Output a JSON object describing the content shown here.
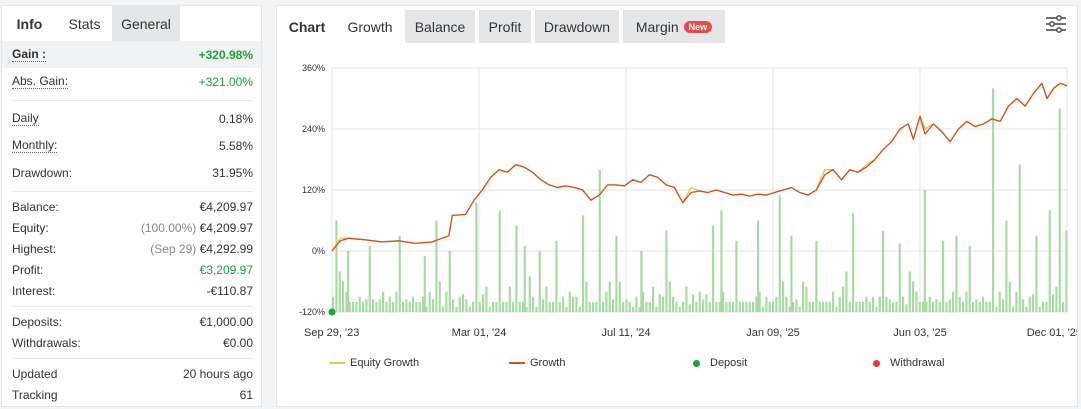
{
  "left_tabs": {
    "info": "Info",
    "stats": "Stats",
    "general": "General"
  },
  "stats": {
    "gain": {
      "label": "Gain :",
      "value": "+320.98%"
    },
    "abs_gain": {
      "label": "Abs. Gain:",
      "value": "+321.00%"
    },
    "daily": {
      "label": "Daily",
      "value": "0.18%"
    },
    "monthly": {
      "label": "Monthly:",
      "value": "5.58%"
    },
    "drawdown": {
      "label": "Drawdown:",
      "value": "31.95%"
    },
    "balance": {
      "label": "Balance:",
      "value": "€4,209.97"
    },
    "equity": {
      "label": "Equity:",
      "note": "(100.00%)",
      "value": "€4,209.97"
    },
    "highest": {
      "label": "Highest:",
      "note": "(Sep 29)",
      "value": "€4,292.99"
    },
    "profit": {
      "label": "Profit:",
      "value": "€3,209.97"
    },
    "interest": {
      "label": "Interest:",
      "value": "-€110.87"
    },
    "deposits": {
      "label": "Deposits:",
      "value": "€1,000.00"
    },
    "withdrawals": {
      "label": "Withdrawals:",
      "value": "€0.00"
    },
    "updated": {
      "label": "Updated",
      "value": "20 hours ago"
    },
    "tracking": {
      "label": "Tracking",
      "value": "61"
    }
  },
  "chart_tabs": {
    "chart": "Chart",
    "growth": "Growth",
    "balance": "Balance",
    "profit": "Profit",
    "drawdown": "Drawdown",
    "margin": "Margin",
    "margin_badge": "New"
  },
  "legend": {
    "equity_growth": "Equity Growth",
    "growth": "Growth",
    "deposit": "Deposit",
    "withdrawal": "Withdrawal"
  },
  "colors": {
    "growth_line": "#d2511f",
    "equity_line": "#f2c14e",
    "bars": "#a8dba4",
    "deposit": "#1aa33b",
    "withdrawal": "#e53935",
    "gain_green": "#1aa33b",
    "badge_red": "#e94a4a"
  },
  "icons": {
    "settings": "sliders-icon"
  },
  "chart_data": {
    "type": "line",
    "xlabel": "",
    "ylabel": "",
    "x_ticks": [
      "Sep 29, '23",
      "Mar 01, '24",
      "Jul 11, '24",
      "Jan 09, '25",
      "Jun 03, '25",
      "Dec 01, '25"
    ],
    "y_ticks": [
      "360%",
      "240%",
      "120%",
      "0%",
      "-120%"
    ],
    "ylim": [
      -120,
      360
    ],
    "grid": true,
    "legend_position": "bottom",
    "series": [
      {
        "name": "Growth",
        "points": [
          [
            0,
            0
          ],
          [
            5,
            20
          ],
          [
            10,
            25
          ],
          [
            20,
            22
          ],
          [
            30,
            18
          ],
          [
            40,
            20
          ],
          [
            50,
            15
          ],
          [
            60,
            18
          ],
          [
            70,
            30
          ],
          [
            72,
            70
          ],
          [
            80,
            72
          ],
          [
            85,
            100
          ],
          [
            90,
            120
          ],
          [
            95,
            145
          ],
          [
            100,
            160
          ],
          [
            105,
            155
          ],
          [
            110,
            170
          ],
          [
            115,
            165
          ],
          [
            120,
            155
          ],
          [
            125,
            140
          ],
          [
            130,
            130
          ],
          [
            135,
            125
          ],
          [
            140,
            128
          ],
          [
            145,
            125
          ],
          [
            150,
            120
          ],
          [
            155,
            100
          ],
          [
            160,
            110
          ],
          [
            165,
            130
          ],
          [
            170,
            130
          ],
          [
            175,
            128
          ],
          [
            180,
            140
          ],
          [
            185,
            135
          ],
          [
            190,
            150
          ],
          [
            195,
            145
          ],
          [
            200,
            130
          ],
          [
            205,
            125
          ],
          [
            210,
            95
          ],
          [
            215,
            115
          ],
          [
            220,
            118
          ],
          [
            225,
            115
          ],
          [
            230,
            120
          ],
          [
            235,
            115
          ],
          [
            240,
            110
          ],
          [
            245,
            112
          ],
          [
            250,
            108
          ],
          [
            255,
            112
          ],
          [
            260,
            110
          ],
          [
            265,
            115
          ],
          [
            270,
            120
          ],
          [
            275,
            125
          ],
          [
            280,
            115
          ],
          [
            285,
            110
          ],
          [
            290,
            120
          ],
          [
            295,
            150
          ],
          [
            300,
            160
          ],
          [
            305,
            140
          ],
          [
            310,
            160
          ],
          [
            315,
            155
          ],
          [
            320,
            165
          ],
          [
            325,
            180
          ],
          [
            330,
            200
          ],
          [
            335,
            215
          ],
          [
            340,
            240
          ],
          [
            345,
            250
          ],
          [
            348,
            220
          ],
          [
            352,
            265
          ],
          [
            355,
            230
          ],
          [
            360,
            250
          ],
          [
            365,
            235
          ],
          [
            370,
            215
          ],
          [
            375,
            240
          ],
          [
            380,
            255
          ],
          [
            385,
            245
          ],
          [
            390,
            250
          ],
          [
            395,
            260
          ],
          [
            400,
            255
          ],
          [
            405,
            285
          ],
          [
            410,
            300
          ],
          [
            415,
            285
          ],
          [
            420,
            310
          ],
          [
            425,
            330
          ],
          [
            428,
            300
          ],
          [
            432,
            320
          ],
          [
            436,
            330
          ],
          [
            440,
            325
          ]
        ]
      },
      {
        "name": "Equity Growth",
        "points": [
          [
            0,
            0
          ],
          [
            5,
            25
          ],
          [
            10,
            25
          ],
          [
            20,
            22
          ],
          [
            30,
            18
          ],
          [
            40,
            20
          ],
          [
            50,
            15
          ],
          [
            60,
            18
          ],
          [
            70,
            30
          ],
          [
            72,
            70
          ],
          [
            80,
            72
          ],
          [
            85,
            100
          ],
          [
            90,
            120
          ],
          [
            95,
            145
          ],
          [
            100,
            160
          ],
          [
            105,
            155
          ],
          [
            110,
            170
          ],
          [
            115,
            165
          ],
          [
            120,
            155
          ],
          [
            125,
            140
          ],
          [
            130,
            130
          ],
          [
            135,
            125
          ],
          [
            140,
            128
          ],
          [
            145,
            125
          ],
          [
            150,
            120
          ],
          [
            155,
            100
          ],
          [
            160,
            110
          ],
          [
            165,
            130
          ],
          [
            170,
            130
          ],
          [
            175,
            128
          ],
          [
            180,
            140
          ],
          [
            185,
            135
          ],
          [
            190,
            150
          ],
          [
            195,
            145
          ],
          [
            200,
            130
          ],
          [
            205,
            125
          ],
          [
            210,
            95
          ],
          [
            215,
            125
          ],
          [
            220,
            118
          ],
          [
            225,
            115
          ],
          [
            230,
            120
          ],
          [
            235,
            115
          ],
          [
            240,
            110
          ],
          [
            245,
            112
          ],
          [
            250,
            108
          ],
          [
            255,
            112
          ],
          [
            260,
            110
          ],
          [
            265,
            115
          ],
          [
            270,
            120
          ],
          [
            275,
            125
          ],
          [
            280,
            115
          ],
          [
            285,
            110
          ],
          [
            290,
            120
          ],
          [
            295,
            160
          ],
          [
            300,
            160
          ],
          [
            305,
            140
          ],
          [
            310,
            160
          ],
          [
            315,
            155
          ],
          [
            320,
            170
          ],
          [
            325,
            180
          ],
          [
            330,
            200
          ],
          [
            335,
            215
          ],
          [
            340,
            240
          ],
          [
            345,
            250
          ],
          [
            348,
            220
          ],
          [
            352,
            265
          ],
          [
            355,
            240
          ],
          [
            360,
            250
          ],
          [
            365,
            235
          ],
          [
            370,
            215
          ],
          [
            375,
            240
          ],
          [
            380,
            255
          ],
          [
            385,
            245
          ],
          [
            390,
            250
          ],
          [
            395,
            260
          ],
          [
            400,
            255
          ],
          [
            405,
            285
          ],
          [
            410,
            300
          ],
          [
            415,
            285
          ],
          [
            420,
            310
          ],
          [
            425,
            330
          ],
          [
            428,
            300
          ],
          [
            432,
            320
          ],
          [
            436,
            330
          ],
          [
            440,
            325
          ]
        ]
      }
    ],
    "bars_series": {
      "name": "daily gain bars",
      "values": [
        -90,
        -60,
        -105,
        -100,
        -40,
        -95,
        -60,
        -100,
        -80,
        -110,
        -100,
        -90,
        -100,
        -110,
        -100,
        -80,
        -90,
        -100,
        -100,
        -100,
        -95,
        -70,
        -100,
        -110,
        -95,
        -85,
        -100,
        -90,
        -95,
        -100,
        -80,
        -60,
        -100,
        -90,
        -90,
        -100,
        -100,
        -110,
        -80,
        -100,
        -90,
        -70,
        -100,
        -105,
        -95,
        -85,
        -100,
        -100,
        -90,
        -80,
        -100,
        -95,
        -100,
        -85,
        -90,
        -100,
        -110,
        -70,
        -80,
        -100,
        -95,
        -100,
        -90,
        -80,
        -60,
        -100,
        -110,
        -100,
        -80,
        -100,
        -90,
        -100,
        -95,
        -100,
        -110,
        -100,
        -90,
        -100,
        -85,
        -100,
        -95,
        -100,
        -110,
        -90,
        -100,
        -80,
        -100,
        -110,
        -100,
        -90,
        -85,
        -100,
        -70,
        -100,
        -110,
        -90,
        -100,
        -80,
        -100,
        -60,
        -100,
        -90,
        -100,
        -110,
        -100,
        -100,
        -70,
        -95,
        -100,
        -110,
        -100,
        -60,
        -100,
        -70,
        -100,
        -100,
        -110,
        -100,
        -50,
        -100,
        -90,
        -100,
        -110,
        -100,
        -60,
        -100,
        -95,
        -100,
        -70,
        -80,
        -100,
        -110,
        -100,
        -90,
        -100,
        -70,
        -100,
        -40,
        -90,
        -100,
        -110,
        -100,
        -80,
        -100,
        -90,
        -100,
        -90,
        -100,
        -110,
        -90,
        -100,
        -100,
        -60,
        -90,
        -100,
        -110,
        -100,
        -90,
        -100,
        -50,
        -100,
        -90,
        -100,
        -95,
        -80,
        -100,
        -60,
        -100,
        -95,
        -100,
        -60
      ],
      "tall_spikes": [
        {
          "i": 2,
          "v": 60
        },
        {
          "i": 9,
          "v": 0
        },
        {
          "i": 22,
          "v": 10
        },
        {
          "i": 40,
          "v": 30
        },
        {
          "i": 55,
          "v": -10
        },
        {
          "i": 62,
          "v": 60
        },
        {
          "i": 70,
          "v": 0
        },
        {
          "i": 86,
          "v": 95
        },
        {
          "i": 100,
          "v": 80
        },
        {
          "i": 110,
          "v": 50
        },
        {
          "i": 115,
          "v": 10
        },
        {
          "i": 124,
          "v": 0
        },
        {
          "i": 134,
          "v": 20
        },
        {
          "i": 150,
          "v": 70
        },
        {
          "i": 160,
          "v": 160
        },
        {
          "i": 170,
          "v": 30
        },
        {
          "i": 185,
          "v": 0
        },
        {
          "i": 200,
          "v": 40
        },
        {
          "i": 228,
          "v": 50
        },
        {
          "i": 233,
          "v": 80
        },
        {
          "i": 242,
          "v": 20
        },
        {
          "i": 255,
          "v": 60
        },
        {
          "i": 268,
          "v": 110
        },
        {
          "i": 275,
          "v": 30
        },
        {
          "i": 290,
          "v": 20
        },
        {
          "i": 312,
          "v": 75
        },
        {
          "i": 330,
          "v": 40
        },
        {
          "i": 340,
          "v": 15
        },
        {
          "i": 355,
          "v": 120
        },
        {
          "i": 366,
          "v": 20
        },
        {
          "i": 374,
          "v": 30
        },
        {
          "i": 382,
          "v": 10
        },
        {
          "i": 396,
          "v": 320
        },
        {
          "i": 404,
          "v": 60
        },
        {
          "i": 412,
          "v": 170
        },
        {
          "i": 422,
          "v": 30
        },
        {
          "i": 430,
          "v": 80
        },
        {
          "i": 436,
          "v": 280
        },
        {
          "i": 440,
          "v": 40
        }
      ]
    },
    "deposit_markers": [
      {
        "x": 0,
        "y": -120
      }
    ],
    "withdrawal_markers": []
  }
}
